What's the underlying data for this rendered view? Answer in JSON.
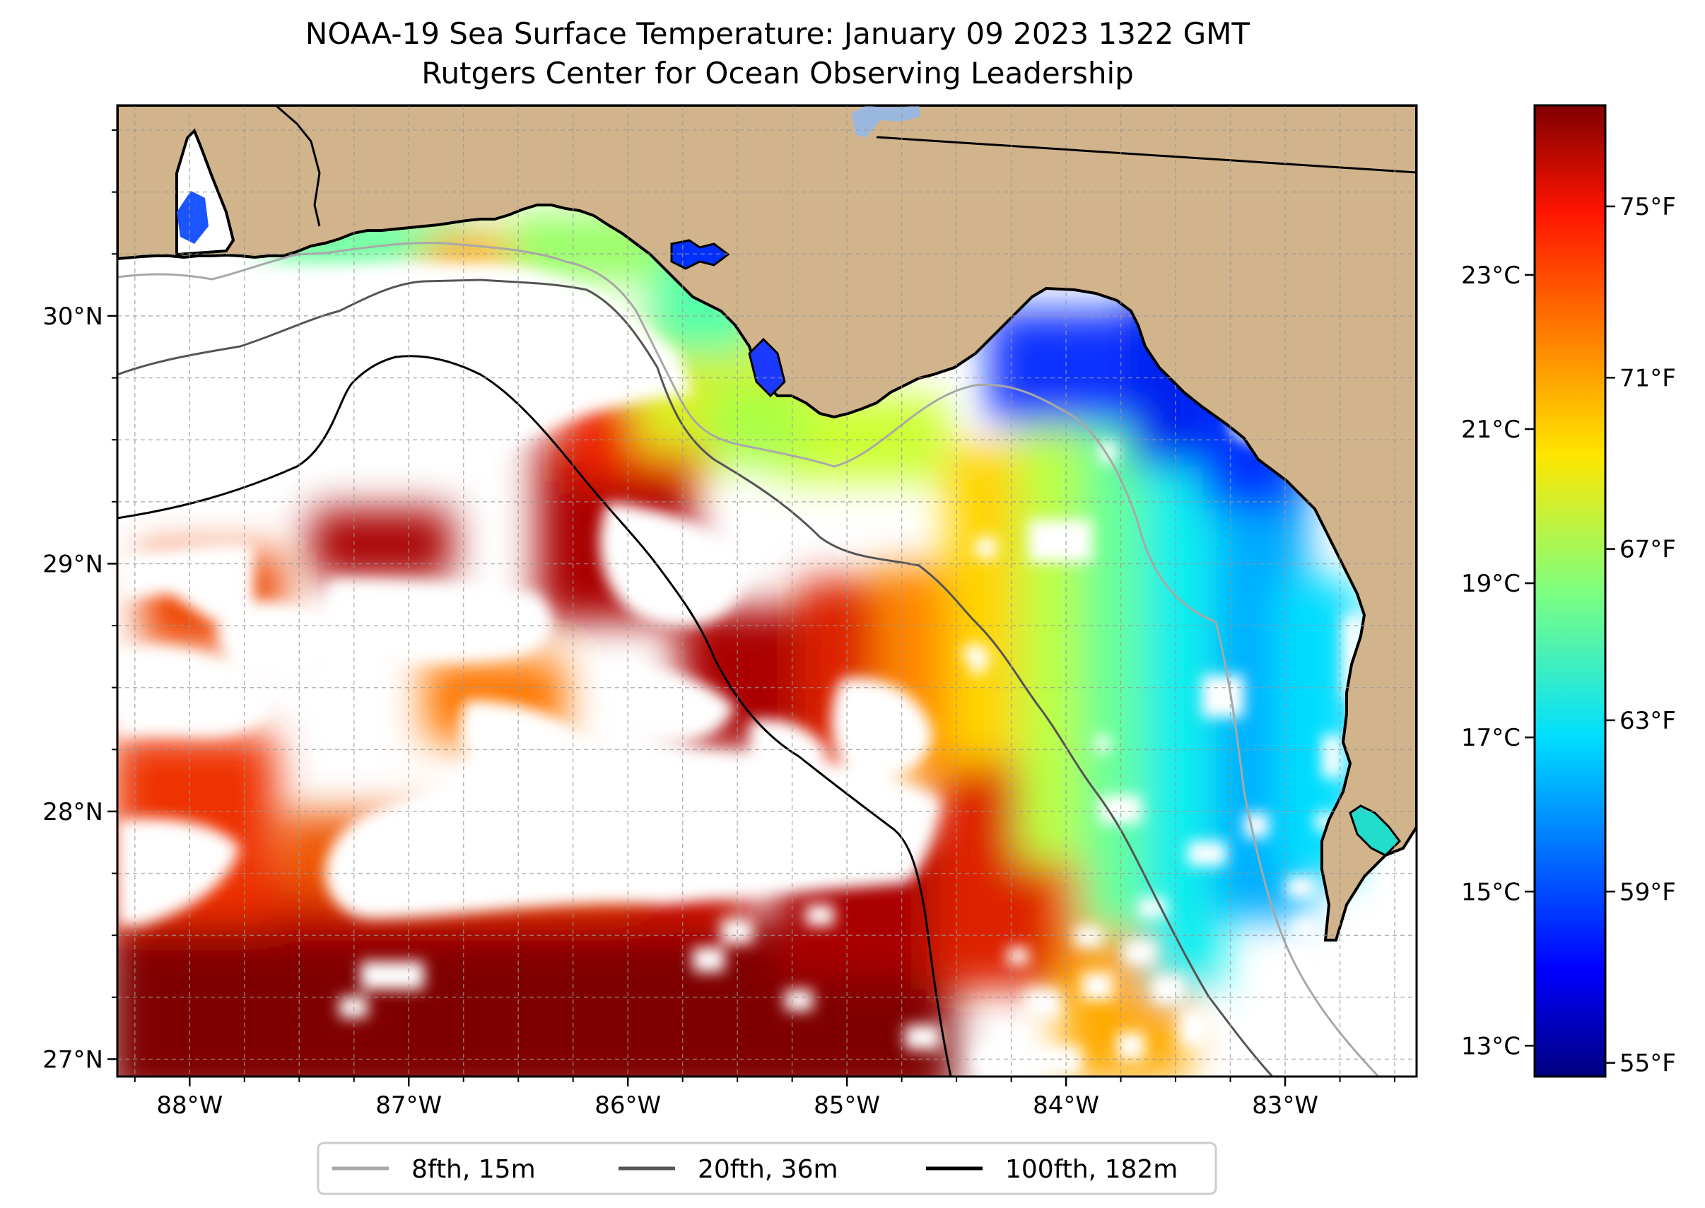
{
  "title": "NOAA-19 Sea Surface Temperature: January 09 2023 1322 GMT",
  "subtitle": "Rutgers Center for Ocean Observing Leadership",
  "chart_data": {
    "type": "heatmap",
    "map": {
      "lon_range": [
        -88.33,
        -82.4
      ],
      "lat_range": [
        26.93,
        30.85
      ],
      "lon_ticks": [
        {
          "value": -88,
          "label": "88°W"
        },
        {
          "value": -87,
          "label": "87°W"
        },
        {
          "value": -86,
          "label": "86°W"
        },
        {
          "value": -85,
          "label": "85°W"
        },
        {
          "value": -84,
          "label": "84°W"
        },
        {
          "value": -83,
          "label": "83°W"
        }
      ],
      "lat_ticks": [
        {
          "value": 27,
          "label": "27°N"
        },
        {
          "value": 28,
          "label": "28°N"
        },
        {
          "value": 29,
          "label": "29°N"
        },
        {
          "value": 30,
          "label": "30°N"
        }
      ],
      "grid": true,
      "land_color": "#d2b48c",
      "no_data_color": "#ffffff"
    },
    "colorbar": {
      "cmap": "jet",
      "celsius_range": [
        12.6,
        25.2
      ],
      "celsius_ticks": [
        {
          "value": 13,
          "label": "13°C"
        },
        {
          "value": 15,
          "label": "15°C"
        },
        {
          "value": 17,
          "label": "17°C"
        },
        {
          "value": 19,
          "label": "19°C"
        },
        {
          "value": 21,
          "label": "21°C"
        },
        {
          "value": 23,
          "label": "23°C"
        }
      ],
      "fahrenheit_ticks": [
        {
          "value": 55,
          "label": "55°F"
        },
        {
          "value": 59,
          "label": "59°F"
        },
        {
          "value": 63,
          "label": "63°F"
        },
        {
          "value": 67,
          "label": "67°F"
        },
        {
          "value": 71,
          "label": "71°F"
        },
        {
          "value": 75,
          "label": "75°F"
        }
      ]
    },
    "legend": {
      "placement": "bottom-center",
      "entries": [
        {
          "label": "8fth, 15m",
          "color": "#a8a8a8"
        },
        {
          "label": "20fth, 36m",
          "color": "#555555"
        },
        {
          "label": "100fth, 182m",
          "color": "#000000"
        }
      ]
    }
  }
}
